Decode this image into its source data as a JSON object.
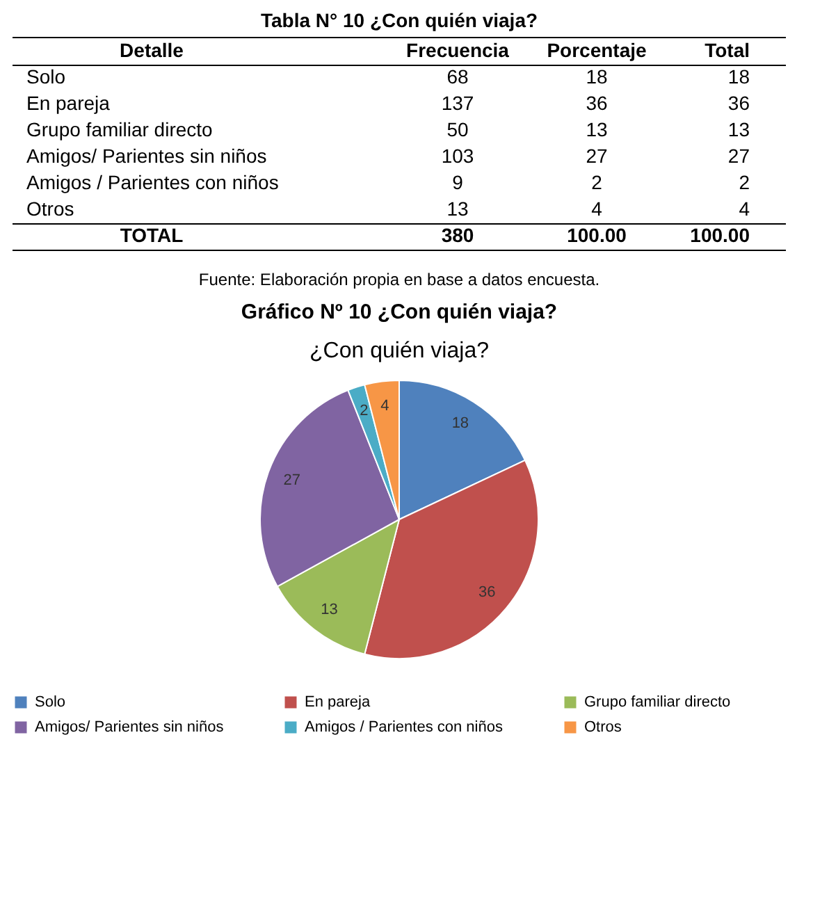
{
  "chart_data": [
    {
      "type": "other",
      "title": "Tabla N° 10 ¿Con quién viaja?",
      "annotations": [
        "Detalle",
        "Frecuencia",
        "Porcentaje",
        "Total",
        "Solo",
        "68",
        "18",
        "18",
        "En pareja",
        "137",
        "36",
        "36",
        "Grupo familiar directo",
        "50",
        "13",
        "13",
        "Amigos/ Parientes sin niños",
        "103",
        "27",
        "27",
        "Amigos / Parientes con niños",
        "9",
        "2",
        "2",
        "Otros",
        "13",
        "4",
        "4",
        "TOTAL",
        "380",
        "100.00",
        "100.00",
        "Fuente: Elaboración propia en base a datos encuesta."
      ]
    },
    {
      "type": "pie",
      "title": "¿Con quién viaja?",
      "annotations": [
        "Gráfico Nº 10 ¿Con quién viaja?"
      ],
      "categories": [
        "Solo",
        "En pareja",
        "Grupo familiar directo",
        "Amigos/ Parientes sin niños",
        "Amigos / Parientes con niños",
        "Otros"
      ],
      "values": [
        18,
        36,
        13,
        27,
        2,
        4
      ],
      "colors": [
        "#4f81bd",
        "#c0504d",
        "#9bbb59",
        "#8064a2",
        "#4bacc6",
        "#f79646"
      ],
      "data_labels": true,
      "legend": "bottom"
    }
  ]
}
